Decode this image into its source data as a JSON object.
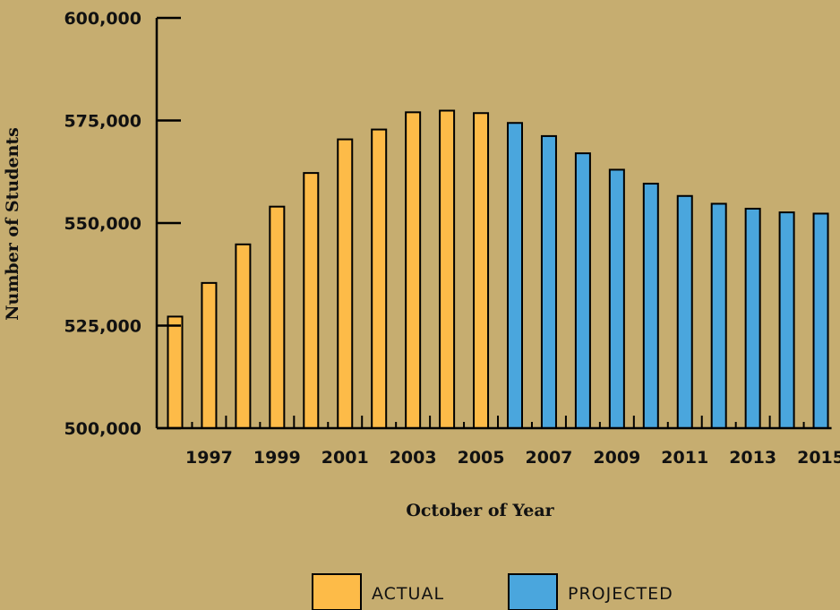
{
  "chart_data": {
    "type": "bar",
    "xlabel": "October of Year",
    "ylabel": "Number of Students",
    "ylim": [
      500000,
      600000
    ],
    "yticks": [
      500000,
      525000,
      550000,
      575000,
      600000
    ],
    "ytick_labels": [
      "500,000",
      "525,000",
      "550,000",
      "575,000",
      "600,000"
    ],
    "categories": [
      "1996",
      "1997",
      "1998",
      "1999",
      "2000",
      "2001",
      "2002",
      "2003",
      "2004",
      "2005",
      "2006",
      "2007",
      "2008",
      "2009",
      "2010",
      "2011",
      "2012",
      "2013",
      "2014",
      "2015"
    ],
    "xtick_labels": [
      "1997",
      "1999",
      "2001",
      "2003",
      "2005",
      "2007",
      "2009",
      "2011",
      "2013",
      "2015"
    ],
    "series": [
      {
        "name": "ACTUAL",
        "color": "#fdbb48",
        "values": [
          527200,
          535400,
          544800,
          554000,
          562200,
          570400,
          572800,
          577000,
          577400,
          576800,
          null,
          null,
          null,
          null,
          null,
          null,
          null,
          null,
          null,
          null
        ]
      },
      {
        "name": "PROJECTED",
        "color": "#4aa6dd",
        "values": [
          null,
          null,
          null,
          null,
          null,
          null,
          null,
          null,
          null,
          null,
          574400,
          571200,
          567000,
          563000,
          559600,
          556600,
          554700,
          553500,
          552600,
          552300
        ]
      }
    ],
    "grid": false,
    "legend": "bottom"
  }
}
